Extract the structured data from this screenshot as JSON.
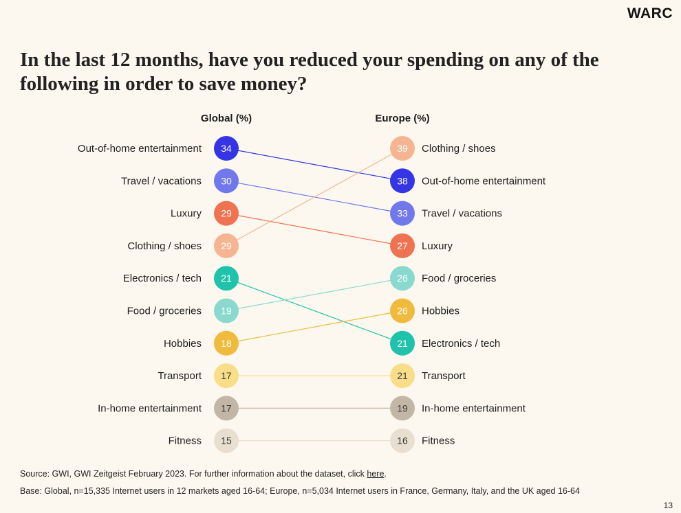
{
  "logo": "WARC",
  "title": "In the last 12 months, have you reduced your spending on any of the following in order to save money?",
  "chart_data": {
    "type": "slope",
    "title": "In the last 12 months, have you reduced your spending on any of the following in order to save money?",
    "left_header": "Global (%)",
    "right_header": "Europe (%)",
    "categories": [
      {
        "name": "Out-of-home entertainment",
        "global": 34,
        "europe": 38,
        "color": "#3535e6"
      },
      {
        "name": "Travel / vacations",
        "global": 30,
        "europe": 33,
        "color": "#7078ec"
      },
      {
        "name": "Luxury",
        "global": 29,
        "europe": 27,
        "color": "#ef7350"
      },
      {
        "name": "Clothing / shoes",
        "global": 29,
        "europe": 39,
        "color": "#f5b592"
      },
      {
        "name": "Electronics / tech",
        "global": 21,
        "europe": 21,
        "color": "#1fc2aa"
      },
      {
        "name": "Food / groceries",
        "global": 19,
        "europe": 26,
        "color": "#8ad9cf"
      },
      {
        "name": "Hobbies",
        "global": 18,
        "europe": 26,
        "color": "#f0bb3c"
      },
      {
        "name": "Transport",
        "global": 17,
        "europe": 21,
        "color": "#f9de8a"
      },
      {
        "name": "In-home entertainment",
        "global": 17,
        "europe": 19,
        "color": "#c2b6a6"
      },
      {
        "name": "Fitness",
        "global": 15,
        "europe": 16,
        "color": "#e8dfd1"
      }
    ],
    "left_order": [
      "Out-of-home entertainment",
      "Travel / vacations",
      "Luxury",
      "Clothing / shoes",
      "Electronics / tech",
      "Food / groceries",
      "Hobbies",
      "Transport",
      "In-home entertainment",
      "Fitness"
    ],
    "right_order": [
      "Clothing / shoes",
      "Out-of-home entertainment",
      "Travel / vacations",
      "Luxury",
      "Food / groceries",
      "Hobbies",
      "Electronics / tech",
      "Transport",
      "In-home entertainment",
      "Fitness"
    ],
    "light_text_values": [
      "Out-of-home entertainment",
      "Travel / vacations",
      "Luxury",
      "Clothing / shoes",
      "Electronics / tech",
      "Food / groceries",
      "Hobbies"
    ]
  },
  "footer": {
    "source_prefix": "Source: GWI, GWI Zeitgeist February 2023. For further information about the dataset, click ",
    "source_link": "here",
    "source_suffix": ".",
    "base": "Base: Global, n=15,335 Internet users in 12 markets aged 16-64; Europe, n=5,034 Internet users in France, Germany, Italy, and the UK aged 16-64"
  },
  "page_number": "13"
}
